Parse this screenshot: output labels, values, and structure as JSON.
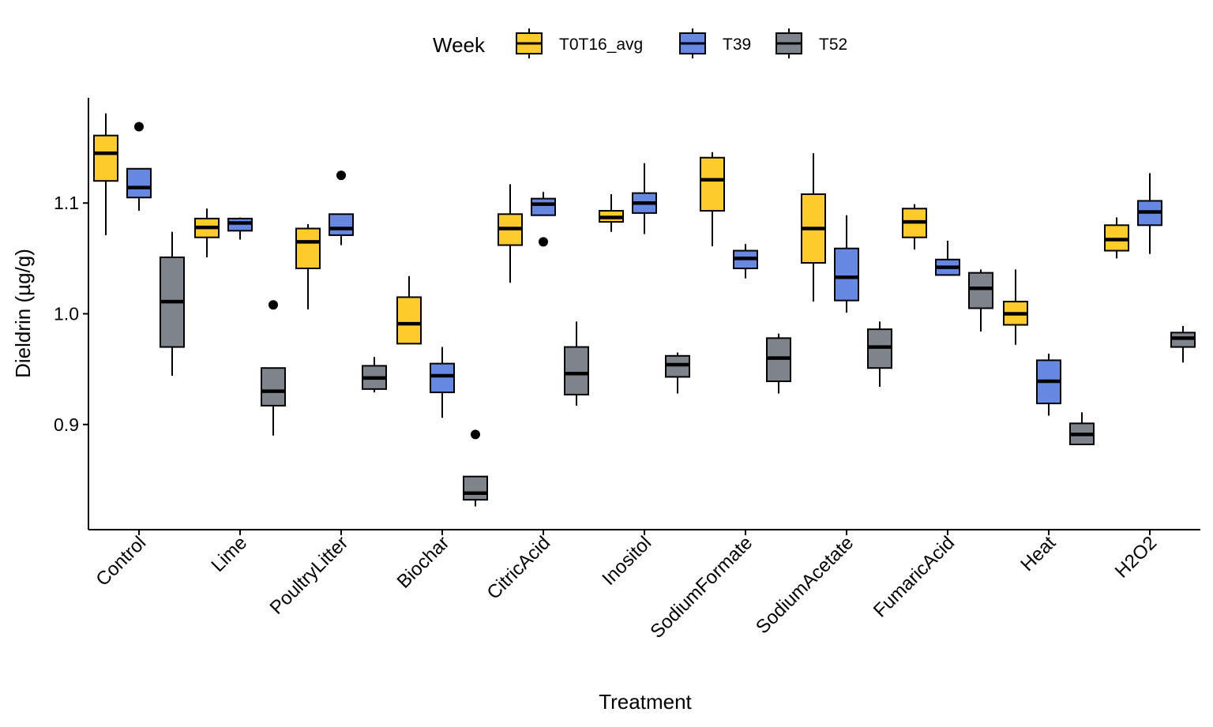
{
  "chart_data": {
    "type": "box",
    "xlabel": "Treatment",
    "ylabel": "Dieldrin (µg/g)",
    "ylim": [
      0.805,
      1.195
    ],
    "yticks": [
      0.9,
      1.0,
      1.1
    ],
    "ytick_labels": [
      "0.9",
      "1.0",
      "1.1"
    ],
    "grid": false,
    "legend": {
      "title": "Week",
      "position": "top",
      "entries": [
        "T0T16_avg",
        "T39",
        "T52"
      ]
    },
    "categories": [
      "Control",
      "Lime",
      "PoultryLitter",
      "Biochar",
      "CitricAcid",
      "Inositol",
      "SodiumFormate",
      "SodiumAcetate",
      "FumaricAcid",
      "Heat",
      "H2O2"
    ],
    "series": [
      {
        "name": "T0T16_avg",
        "color": "#FDCB2A",
        "boxes": [
          {
            "min": 1.071,
            "q1": 1.12,
            "median": 1.145,
            "q3": 1.161,
            "max": 1.181,
            "outliers": []
          },
          {
            "min": 1.051,
            "q1": 1.069,
            "median": 1.078,
            "q3": 1.086,
            "max": 1.095,
            "outliers": []
          },
          {
            "min": 1.004,
            "q1": 1.041,
            "median": 1.065,
            "q3": 1.077,
            "max": 1.081,
            "outliers": []
          },
          {
            "min": 0.973,
            "q1": 0.973,
            "median": 0.991,
            "q3": 1.015,
            "max": 1.034,
            "outliers": []
          },
          {
            "min": 1.028,
            "q1": 1.062,
            "median": 1.077,
            "q3": 1.09,
            "max": 1.117,
            "outliers": []
          },
          {
            "min": 1.074,
            "q1": 1.083,
            "median": 1.087,
            "q3": 1.093,
            "max": 1.108,
            "outliers": []
          },
          {
            "min": 1.061,
            "q1": 1.093,
            "median": 1.121,
            "q3": 1.141,
            "max": 1.146,
            "outliers": []
          },
          {
            "min": 1.011,
            "q1": 1.046,
            "median": 1.077,
            "q3": 1.108,
            "max": 1.145,
            "outliers": []
          },
          {
            "min": 1.058,
            "q1": 1.069,
            "median": 1.083,
            "q3": 1.095,
            "max": 1.099,
            "outliers": []
          },
          {
            "min": 0.972,
            "q1": 0.99,
            "median": 1.0,
            "q3": 1.011,
            "max": 1.04,
            "outliers": []
          },
          {
            "min": 1.05,
            "q1": 1.057,
            "median": 1.067,
            "q3": 1.08,
            "max": 1.087,
            "outliers": []
          }
        ]
      },
      {
        "name": "T39",
        "color": "#6688E2",
        "boxes": [
          {
            "min": 1.093,
            "q1": 1.105,
            "median": 1.114,
            "q3": 1.131,
            "max": 1.131,
            "outliers": [
              1.169
            ]
          },
          {
            "min": 1.067,
            "q1": 1.075,
            "median": 1.082,
            "q3": 1.086,
            "max": 1.087,
            "outliers": []
          },
          {
            "min": 1.062,
            "q1": 1.071,
            "median": 1.077,
            "q3": 1.09,
            "max": 1.09,
            "outliers": [
              1.125
            ]
          },
          {
            "min": 0.906,
            "q1": 0.929,
            "median": 0.944,
            "q3": 0.955,
            "max": 0.97,
            "outliers": []
          },
          {
            "min": 1.089,
            "q1": 1.089,
            "median": 1.099,
            "q3": 1.104,
            "max": 1.11,
            "outliers": [
              1.065
            ]
          },
          {
            "min": 1.072,
            "q1": 1.091,
            "median": 1.1,
            "q3": 1.109,
            "max": 1.136,
            "outliers": []
          },
          {
            "min": 1.032,
            "q1": 1.041,
            "median": 1.05,
            "q3": 1.057,
            "max": 1.063,
            "outliers": []
          },
          {
            "min": 1.001,
            "q1": 1.012,
            "median": 1.033,
            "q3": 1.059,
            "max": 1.089,
            "outliers": []
          },
          {
            "min": 1.035,
            "q1": 1.035,
            "median": 1.042,
            "q3": 1.049,
            "max": 1.066,
            "outliers": []
          },
          {
            "min": 0.908,
            "q1": 0.919,
            "median": 0.939,
            "q3": 0.958,
            "max": 0.964,
            "outliers": []
          },
          {
            "min": 1.054,
            "q1": 1.08,
            "median": 1.092,
            "q3": 1.102,
            "max": 1.127,
            "outliers": []
          }
        ]
      },
      {
        "name": "T52",
        "color": "#7F838C",
        "boxes": [
          {
            "min": 0.944,
            "q1": 0.97,
            "median": 1.011,
            "q3": 1.051,
            "max": 1.074,
            "outliers": []
          },
          {
            "min": 0.89,
            "q1": 0.917,
            "median": 0.93,
            "q3": 0.951,
            "max": 0.951,
            "outliers": [
              1.008
            ]
          },
          {
            "min": 0.929,
            "q1": 0.932,
            "median": 0.942,
            "q3": 0.953,
            "max": 0.961,
            "outliers": []
          },
          {
            "min": 0.826,
            "q1": 0.832,
            "median": 0.838,
            "q3": 0.853,
            "max": 0.853,
            "outliers": [
              0.891
            ]
          },
          {
            "min": 0.917,
            "q1": 0.927,
            "median": 0.946,
            "q3": 0.97,
            "max": 0.993,
            "outliers": []
          },
          {
            "min": 0.928,
            "q1": 0.943,
            "median": 0.954,
            "q3": 0.962,
            "max": 0.965,
            "outliers": []
          },
          {
            "min": 0.928,
            "q1": 0.939,
            "median": 0.96,
            "q3": 0.978,
            "max": 0.982,
            "outliers": []
          },
          {
            "min": 0.934,
            "q1": 0.951,
            "median": 0.97,
            "q3": 0.986,
            "max": 0.993,
            "outliers": []
          },
          {
            "min": 0.984,
            "q1": 1.005,
            "median": 1.023,
            "q3": 1.037,
            "max": 1.04,
            "outliers": []
          },
          {
            "min": 0.882,
            "q1": 0.882,
            "median": 0.891,
            "q3": 0.901,
            "max": 0.911,
            "outliers": []
          },
          {
            "min": 0.956,
            "q1": 0.97,
            "median": 0.978,
            "q3": 0.983,
            "max": 0.989,
            "outliers": []
          }
        ]
      }
    ]
  }
}
